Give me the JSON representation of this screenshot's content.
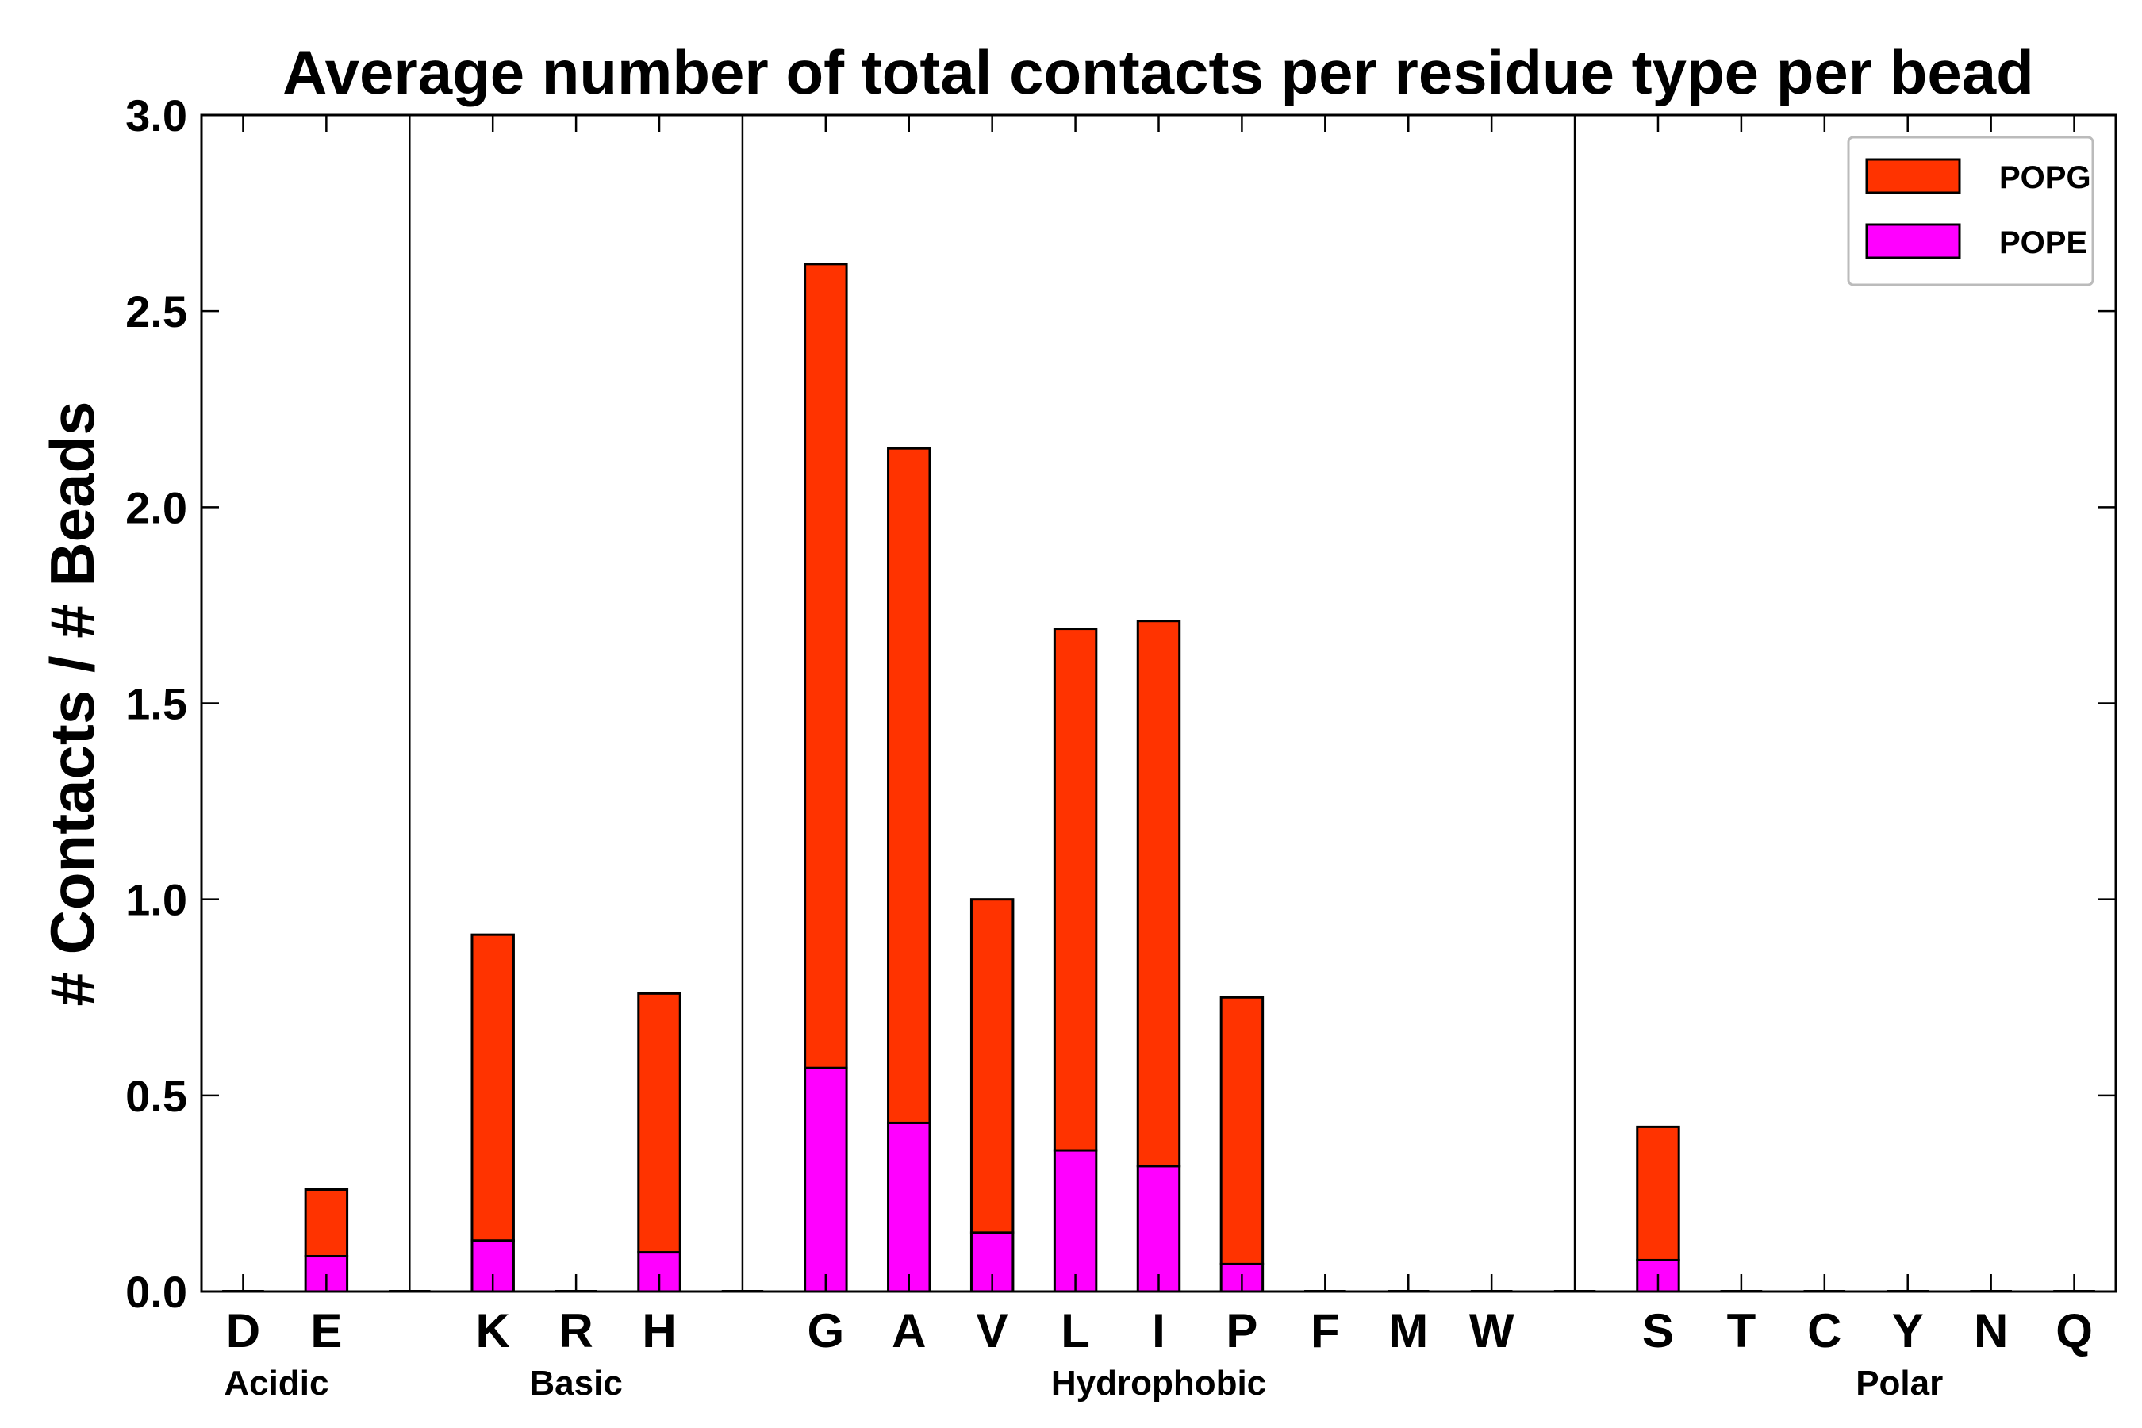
{
  "chart_data": {
    "type": "bar",
    "stacked": true,
    "title": "Average number of total contacts per residue type per bead",
    "xlabel": "",
    "ylabel": "# Contacts / # Beads",
    "ylim": [
      0,
      3.0
    ],
    "yticks": [
      "0.0",
      "0.5",
      "1.0",
      "1.5",
      "2.0",
      "2.5",
      "3.0"
    ],
    "categories": [
      "D",
      "E",
      "K",
      "R",
      "H",
      "G",
      "A",
      "V",
      "L",
      "I",
      "P",
      "F",
      "M",
      "W",
      "S",
      "T",
      "C",
      "Y",
      "N",
      "Q"
    ],
    "slot_index": [
      0,
      1,
      3,
      4,
      5,
      7,
      8,
      9,
      10,
      11,
      12,
      13,
      14,
      15,
      17,
      18,
      19,
      20,
      21,
      22
    ],
    "separator_slots": [
      2,
      6,
      16
    ],
    "total_slots": 23,
    "groups": [
      {
        "name": "Acidic",
        "center_slot": 0.4
      },
      {
        "name": "Basic",
        "center_slot": 4.0
      },
      {
        "name": "Hydrophobic",
        "center_slot": 11.0
      },
      {
        "name": "Polar",
        "center_slot": 19.9
      }
    ],
    "series": [
      {
        "name": "POPE",
        "color": "#ff00ff",
        "values": [
          0.0,
          0.09,
          0.13,
          0.0,
          0.1,
          0.57,
          0.43,
          0.15,
          0.36,
          0.32,
          0.07,
          0.0,
          0.0,
          0.0,
          0.08,
          0.0,
          0.0,
          0.0,
          0.0,
          0.0
        ]
      },
      {
        "name": "POPG",
        "color": "#ff3300",
        "values": [
          0.0,
          0.17,
          0.78,
          0.0,
          0.66,
          2.05,
          1.72,
          0.85,
          1.33,
          1.39,
          0.68,
          0.0,
          0.0,
          0.0,
          0.34,
          0.0,
          0.0,
          0.0,
          0.0,
          0.0
        ]
      }
    ],
    "legend": {
      "position": "top-right",
      "entries": [
        "POPG",
        "POPE"
      ]
    }
  }
}
